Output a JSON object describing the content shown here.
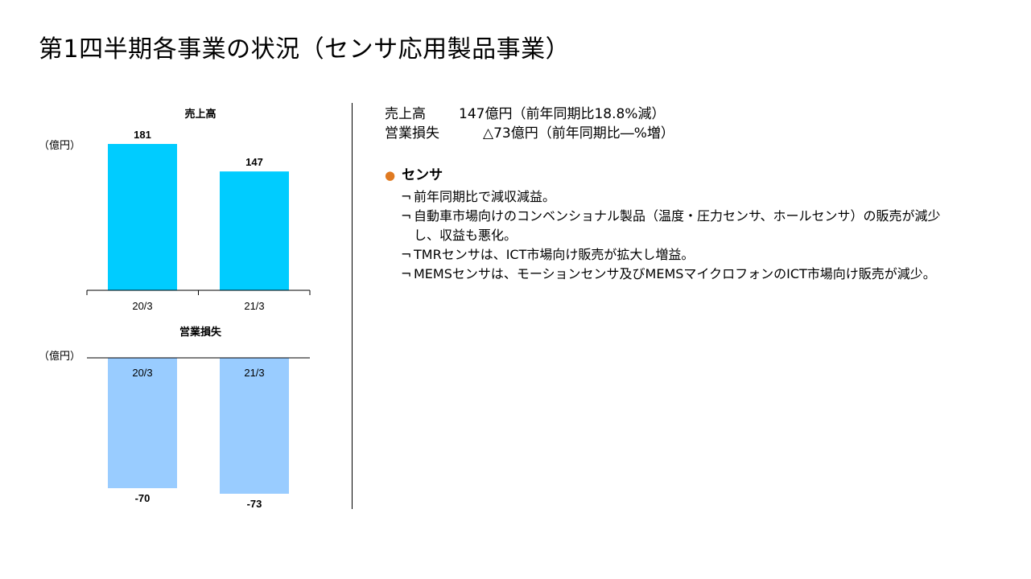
{
  "slide": {
    "title": "第1四半期各事業の状況（センサ応用製品事業）"
  },
  "charts": [
    {
      "title": "売上高",
      "unit": "（億円）",
      "color": "#00CCFF"
    },
    {
      "title": "営業損失",
      "unit": "（億円）",
      "color": "#99CCFF"
    }
  ],
  "chart_data": [
    {
      "type": "bar",
      "title": "売上高",
      "ylabel": "（億円）",
      "categories": [
        "20/3",
        "21/3"
      ],
      "values": [
        181,
        147
      ],
      "data_labels": [
        "181",
        "147"
      ],
      "ylim": [
        0,
        181
      ]
    },
    {
      "type": "bar",
      "title": "営業損失",
      "ylabel": "（億円）",
      "categories": [
        "20/3",
        "21/3"
      ],
      "values": [
        -70,
        -73
      ],
      "data_labels": [
        "-70",
        "-73"
      ],
      "ylim": [
        -73,
        0
      ]
    }
  ],
  "summary": [
    {
      "label": "売上高",
      "value": "147億円（前年同期比18.8%減）"
    },
    {
      "label": "営業損失",
      "value": "△73億円（前年同期比―%増）"
    }
  ],
  "section": {
    "heading": "センサ",
    "bullet_color": "#E07A21",
    "item_mark": "¬",
    "items": [
      "前年同期比で減収減益。",
      "自動車市場向けのコンベンショナル製品（温度・圧力センサ、ホールセンサ）の販売が減少し、収益も悪化。",
      "TMRセンサは、ICT市場向け販売が拡大し増益。",
      "MEMSセンサは、モーションセンサ及びMEMSマイクロフォンのICT市場向け販売が減少。"
    ]
  }
}
